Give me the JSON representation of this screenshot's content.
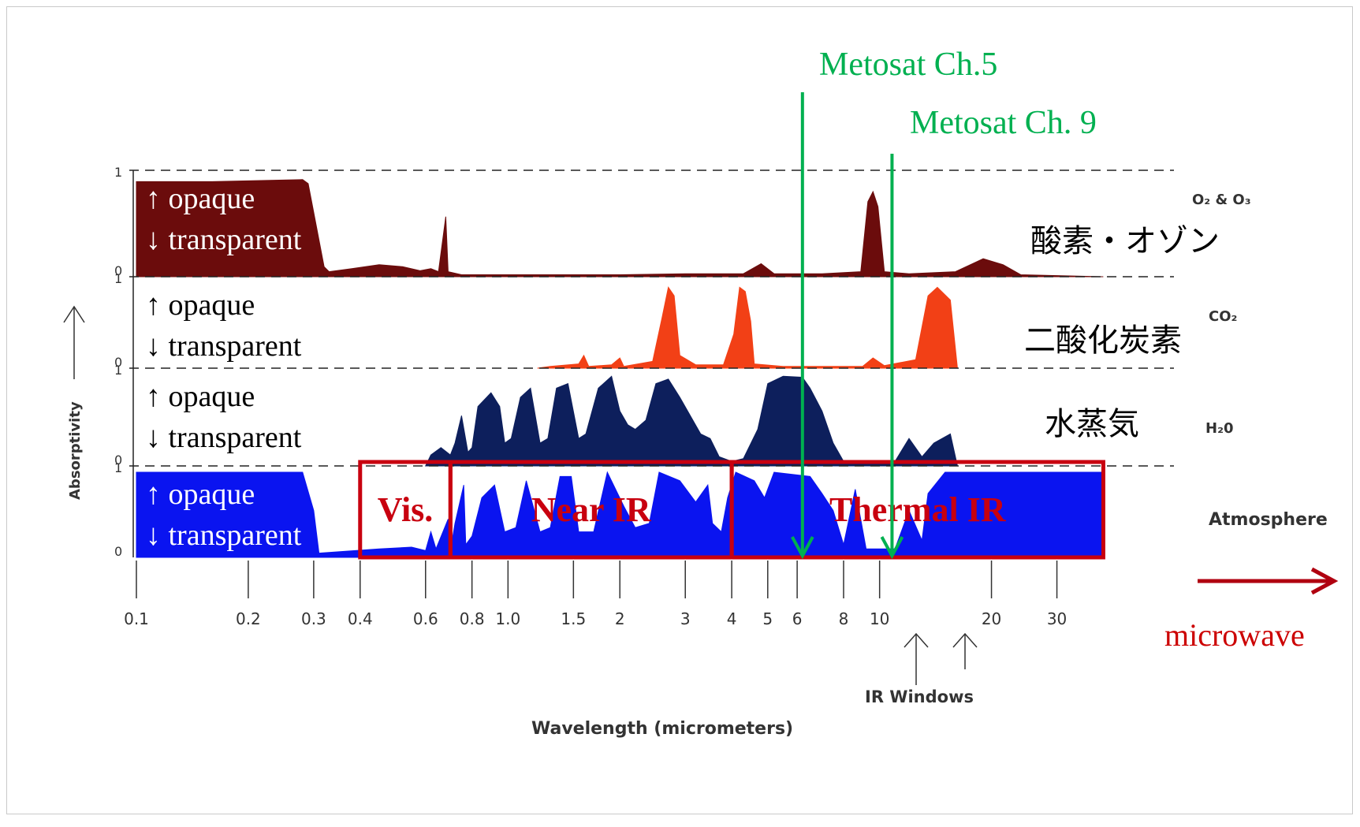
{
  "chart_data": {
    "type": "area",
    "x_axis": {
      "label": "Wavelength (micrometers)",
      "scale": "log",
      "range": [
        0.1,
        70
      ],
      "tick_labels": [
        "0.1",
        "0.2",
        "0.3",
        "0.4",
        "0.6",
        "0.8",
        "1.0",
        "1.5",
        "2",
        "3",
        "4",
        "5",
        "6",
        "8",
        "10",
        "20",
        "30"
      ]
    },
    "y_axis": {
      "label": "Absorptivity",
      "ticks": [
        "0",
        "1"
      ]
    },
    "panel_text": {
      "opaque": "↑ opaque",
      "transparent": "↓ transparent"
    },
    "panels": [
      {
        "name_en": "O₂ & O₃",
        "name_jp": "酸素・オゾン",
        "color": "#6b0c0c",
        "series": [
          [
            0.1,
            0.95
          ],
          [
            0.16,
            0.95
          ],
          [
            0.28,
            0.97
          ],
          [
            0.29,
            0.93
          ],
          [
            0.32,
            0.1
          ],
          [
            0.33,
            0.05
          ],
          [
            0.38,
            0.08
          ],
          [
            0.45,
            0.12
          ],
          [
            0.52,
            0.1
          ],
          [
            0.58,
            0.06
          ],
          [
            0.62,
            0.08
          ],
          [
            0.65,
            0.05
          ],
          [
            0.68,
            0.6
          ],
          [
            0.69,
            0.05
          ],
          [
            0.75,
            0.02
          ],
          [
            1.0,
            0.02
          ],
          [
            2.0,
            0.02
          ],
          [
            3.0,
            0.03
          ],
          [
            4.3,
            0.03
          ],
          [
            4.8,
            0.13
          ],
          [
            5.2,
            0.03
          ],
          [
            7.0,
            0.03
          ],
          [
            8.9,
            0.05
          ],
          [
            9.3,
            0.75
          ],
          [
            9.6,
            0.85
          ],
          [
            9.9,
            0.7
          ],
          [
            10.3,
            0.05
          ],
          [
            12.0,
            0.03
          ],
          [
            16.0,
            0.05
          ],
          [
            19.0,
            0.18
          ],
          [
            21.5,
            0.12
          ],
          [
            24.0,
            0.02
          ],
          [
            40.0,
            0.0
          ]
        ]
      },
      {
        "name_en": "CO₂",
        "name_jp": "二酸化炭素",
        "color": "#f24016",
        "series": [
          [
            1.2,
            0.0
          ],
          [
            1.3,
            0.02
          ],
          [
            1.55,
            0.05
          ],
          [
            1.6,
            0.15
          ],
          [
            1.65,
            0.02
          ],
          [
            1.9,
            0.04
          ],
          [
            2.0,
            0.12
          ],
          [
            2.05,
            0.02
          ],
          [
            2.45,
            0.08
          ],
          [
            2.6,
            0.6
          ],
          [
            2.7,
            0.95
          ],
          [
            2.8,
            0.85
          ],
          [
            2.9,
            0.15
          ],
          [
            3.2,
            0.04
          ],
          [
            3.8,
            0.04
          ],
          [
            4.05,
            0.4
          ],
          [
            4.2,
            0.95
          ],
          [
            4.35,
            0.9
          ],
          [
            4.5,
            0.55
          ],
          [
            4.6,
            0.05
          ],
          [
            5.5,
            0.02
          ],
          [
            9.0,
            0.02
          ],
          [
            9.6,
            0.12
          ],
          [
            10.3,
            0.03
          ],
          [
            12.5,
            0.1
          ],
          [
            13.5,
            0.85
          ],
          [
            14.3,
            0.95
          ],
          [
            15.5,
            0.8
          ],
          [
            16.2,
            0.0
          ]
        ]
      },
      {
        "name_en": "H₂0",
        "name_jp": "水蒸気",
        "color": "#0d1f5c",
        "series": [
          [
            0.6,
            0.0
          ],
          [
            0.62,
            0.12
          ],
          [
            0.66,
            0.2
          ],
          [
            0.7,
            0.12
          ],
          [
            0.72,
            0.25
          ],
          [
            0.75,
            0.55
          ],
          [
            0.78,
            0.15
          ],
          [
            0.8,
            0.2
          ],
          [
            0.83,
            0.65
          ],
          [
            0.9,
            0.8
          ],
          [
            0.95,
            0.65
          ],
          [
            0.98,
            0.25
          ],
          [
            1.02,
            0.3
          ],
          [
            1.08,
            0.75
          ],
          [
            1.15,
            0.85
          ],
          [
            1.22,
            0.25
          ],
          [
            1.28,
            0.3
          ],
          [
            1.35,
            0.85
          ],
          [
            1.45,
            0.9
          ],
          [
            1.55,
            0.3
          ],
          [
            1.62,
            0.35
          ],
          [
            1.75,
            0.85
          ],
          [
            1.9,
            0.98
          ],
          [
            2.0,
            0.6
          ],
          [
            2.1,
            0.45
          ],
          [
            2.2,
            0.4
          ],
          [
            2.35,
            0.5
          ],
          [
            2.5,
            0.9
          ],
          [
            2.7,
            0.95
          ],
          [
            2.9,
            0.75
          ],
          [
            3.3,
            0.35
          ],
          [
            3.5,
            0.3
          ],
          [
            3.7,
            0.1
          ],
          [
            4.0,
            0.05
          ],
          [
            4.3,
            0.08
          ],
          [
            4.7,
            0.4
          ],
          [
            5.0,
            0.9
          ],
          [
            5.5,
            0.98
          ],
          [
            6.2,
            0.97
          ],
          [
            6.5,
            0.85
          ],
          [
            7.0,
            0.6
          ],
          [
            7.5,
            0.25
          ],
          [
            8.0,
            0.05
          ],
          [
            9.5,
            0.03
          ],
          [
            11.0,
            0.05
          ],
          [
            12.0,
            0.3
          ],
          [
            13.0,
            0.1
          ],
          [
            14.0,
            0.25
          ],
          [
            15.5,
            0.35
          ],
          [
            16.2,
            0.0
          ]
        ]
      },
      {
        "name_en": "Atmosphere",
        "name_jp": "",
        "color": "#0a14f0",
        "series": [
          [
            0.1,
            1.0
          ],
          [
            0.28,
            1.0
          ],
          [
            0.3,
            0.55
          ],
          [
            0.31,
            0.05
          ],
          [
            0.45,
            0.1
          ],
          [
            0.55,
            0.12
          ],
          [
            0.6,
            0.08
          ],
          [
            0.62,
            0.3
          ],
          [
            0.64,
            0.1
          ],
          [
            0.69,
            0.45
          ],
          [
            0.7,
            0.08
          ],
          [
            0.72,
            0.4
          ],
          [
            0.76,
            0.85
          ],
          [
            0.77,
            0.15
          ],
          [
            0.8,
            0.25
          ],
          [
            0.85,
            0.7
          ],
          [
            0.92,
            0.85
          ],
          [
            0.98,
            0.3
          ],
          [
            1.05,
            0.35
          ],
          [
            1.12,
            0.9
          ],
          [
            1.22,
            0.3
          ],
          [
            1.3,
            0.35
          ],
          [
            1.38,
            0.95
          ],
          [
            1.48,
            0.95
          ],
          [
            1.55,
            0.3
          ],
          [
            1.7,
            0.3
          ],
          [
            1.85,
            1.0
          ],
          [
            2.05,
            0.6
          ],
          [
            2.2,
            0.35
          ],
          [
            2.4,
            0.4
          ],
          [
            2.55,
            1.0
          ],
          [
            2.9,
            0.9
          ],
          [
            3.2,
            0.65
          ],
          [
            3.45,
            0.85
          ],
          [
            3.55,
            0.4
          ],
          [
            3.75,
            0.3
          ],
          [
            3.9,
            0.7
          ],
          [
            4.1,
            1.0
          ],
          [
            4.6,
            0.9
          ],
          [
            4.9,
            0.7
          ],
          [
            5.2,
            1.0
          ],
          [
            6.5,
            0.95
          ],
          [
            7.0,
            0.75
          ],
          [
            7.5,
            0.55
          ],
          [
            8.0,
            0.15
          ],
          [
            8.6,
            0.8
          ],
          [
            9.2,
            0.1
          ],
          [
            11.0,
            0.1
          ],
          [
            12.0,
            0.55
          ],
          [
            13.0,
            0.2
          ],
          [
            13.5,
            0.75
          ],
          [
            15.0,
            1.0
          ],
          [
            40.0,
            1.0
          ]
        ]
      }
    ],
    "region_boxes": [
      {
        "label": "Vis.",
        "from": 0.4,
        "to": 0.7
      },
      {
        "label": "Near IR",
        "from": 0.7,
        "to": 4.0
      },
      {
        "label": "Thermal IR",
        "from": 4.0,
        "to": 40.0
      }
    ],
    "channels": [
      {
        "label": "Metosat Ch.5",
        "x": 6.2
      },
      {
        "label": "Metosat Ch. 9",
        "x": 10.8
      }
    ],
    "annotations": {
      "microwave": "microwave",
      "ir_windows": "IR Windows"
    }
  },
  "colors": {
    "box_red": "#c8000f",
    "channel_green": "#00b050",
    "text_red": "#cc0000"
  }
}
